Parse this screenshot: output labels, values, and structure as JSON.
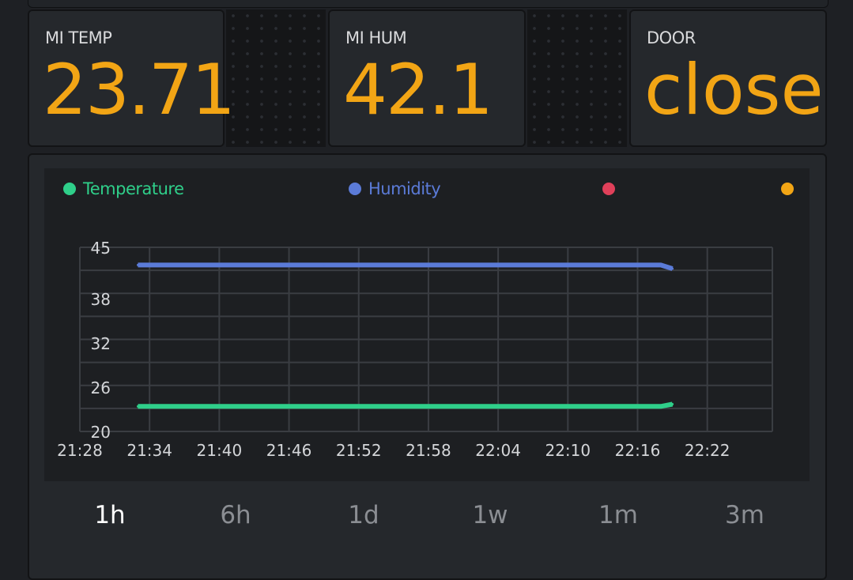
{
  "tiles": {
    "temp": {
      "label": "MI TEMP",
      "value": "23.71"
    },
    "hum": {
      "label": "MI HUM",
      "value": "42.1"
    },
    "door": {
      "label": "DOOR",
      "value": "close"
    }
  },
  "legend": [
    {
      "name": "Temperature",
      "color": "#2fcf8a"
    },
    {
      "name": "Humidity",
      "color": "#5b7bd8"
    },
    {
      "name": "",
      "color": "#e0405a"
    },
    {
      "name": "",
      "color": "#f2a515"
    }
  ],
  "periods": [
    "1h",
    "6h",
    "1d",
    "1w",
    "1m",
    "3m"
  ],
  "active_period": "1h",
  "colors": {
    "accent": "#f2a515",
    "temperature": "#2fcf8a",
    "humidity": "#5b7bd8"
  },
  "chart_data": {
    "type": "line",
    "x_ticks": [
      "21:28",
      "21:34",
      "21:40",
      "21:46",
      "21:52",
      "21:58",
      "22:04",
      "22:10",
      "22:16",
      "22:22"
    ],
    "y_ticks": [
      "45",
      "38",
      "32",
      "26",
      "20"
    ],
    "ylim": [
      20,
      45
    ],
    "grid": true,
    "legend_position": "top",
    "series": [
      {
        "name": "Humidity",
        "x": [
          "21:33",
          "21:46",
          "21:49",
          "21:58",
          "21:59",
          "22:04",
          "22:10",
          "22:16",
          "22:18",
          "22:19"
        ],
        "values": [
          42.6,
          42.6,
          42.6,
          42.6,
          42.6,
          42.6,
          42.6,
          42.6,
          42.6,
          42.1
        ]
      },
      {
        "name": "Temperature",
        "x": [
          "21:33",
          "21:46",
          "21:49",
          "21:58",
          "21:59",
          "22:04",
          "22:10",
          "22:16",
          "22:18",
          "22:19"
        ],
        "values": [
          23.4,
          23.4,
          23.4,
          23.4,
          23.4,
          23.4,
          23.4,
          23.4,
          23.4,
          23.7
        ]
      }
    ]
  }
}
